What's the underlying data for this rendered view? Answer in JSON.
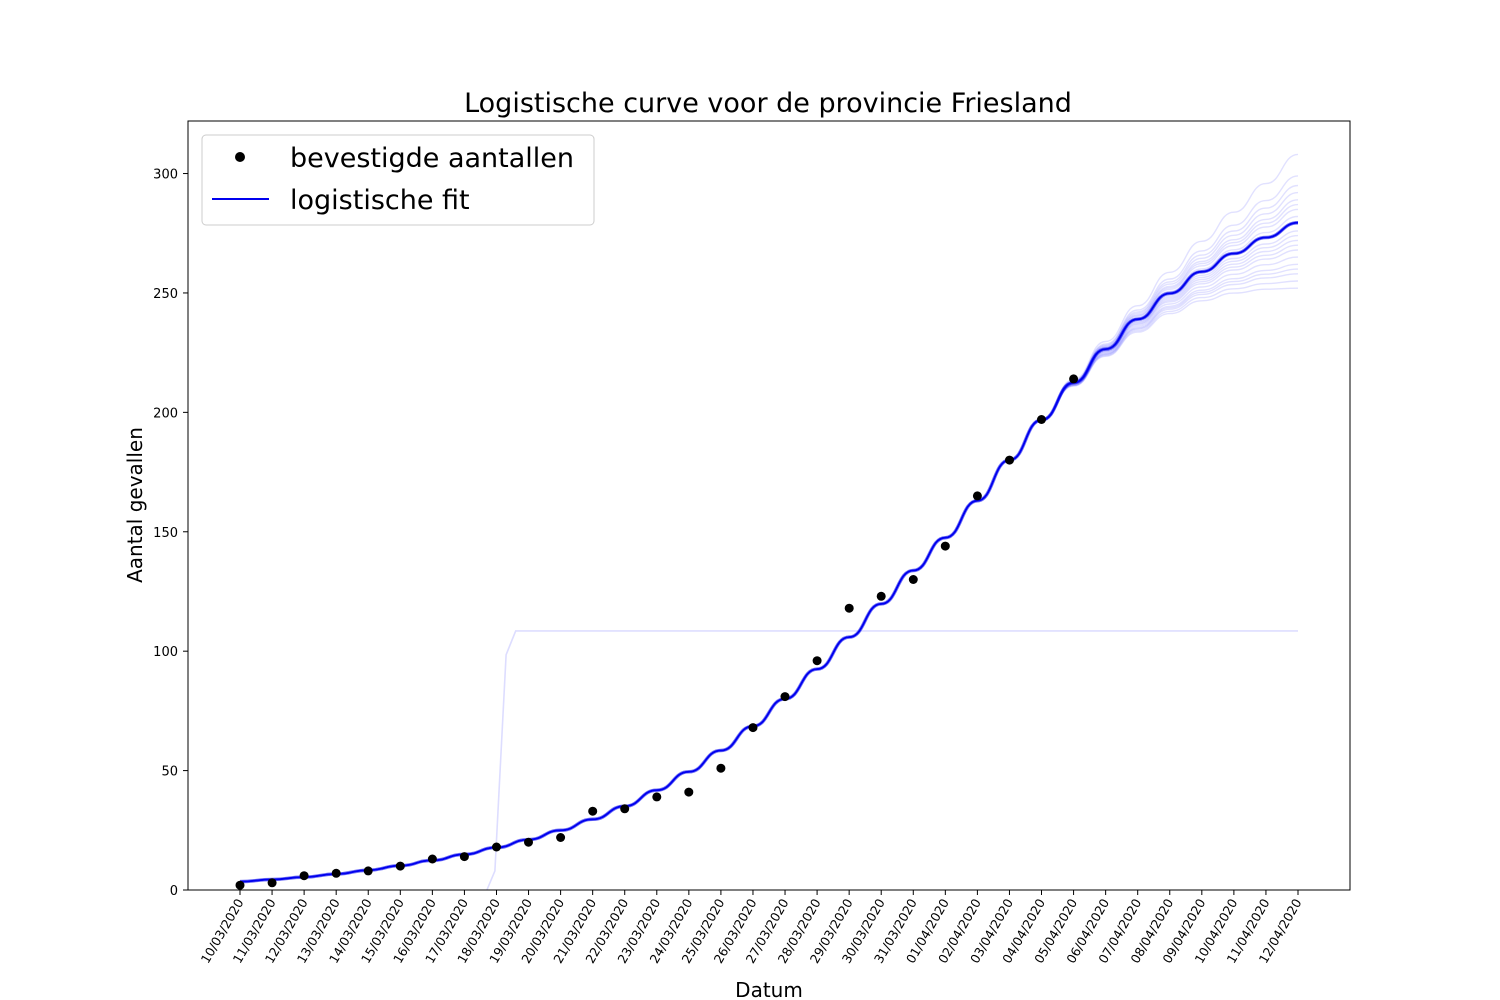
{
  "chart_data": {
    "type": "line",
    "title": "Logistische curve voor de provincie Friesland",
    "xlabel": "Datum",
    "ylabel": "Aantal gevallen",
    "ylim": [
      0,
      322
    ],
    "yticks": [
      0,
      50,
      100,
      150,
      200,
      250,
      300
    ],
    "categories": [
      "10/03/2020",
      "11/03/2020",
      "12/03/2020",
      "13/03/2020",
      "14/03/2020",
      "15/03/2020",
      "16/03/2020",
      "17/03/2020",
      "18/03/2020",
      "19/03/2020",
      "20/03/2020",
      "21/03/2020",
      "22/03/2020",
      "23/03/2020",
      "24/03/2020",
      "25/03/2020",
      "26/03/2020",
      "27/03/2020",
      "28/03/2020",
      "29/03/2020",
      "30/03/2020",
      "31/03/2020",
      "01/04/2020",
      "02/04/2020",
      "03/04/2020",
      "04/04/2020",
      "05/04/2020",
      "06/04/2020",
      "07/04/2020",
      "08/04/2020",
      "09/04/2020",
      "10/04/2020",
      "11/04/2020",
      "12/04/2020"
    ],
    "legend": {
      "position": "top-left",
      "entries": [
        "bevestigde aantallen",
        "logistische fit"
      ]
    },
    "series": [
      {
        "name": "bevestigde aantallen",
        "kind": "scatter",
        "color": "#000000",
        "values": [
          2,
          3,
          6,
          7,
          8,
          10,
          13,
          14,
          18,
          20,
          22,
          33,
          34,
          39,
          41,
          51,
          68,
          81,
          96,
          118,
          123,
          130,
          144,
          165,
          180,
          197,
          214
        ]
      },
      {
        "name": "logistische fit",
        "kind": "line",
        "color": "#0000ee",
        "values": [
          3.5,
          4.4,
          5.4,
          6.7,
          8.3,
          10.2,
          12.4,
          14.9,
          17.8,
          21.1,
          25.0,
          29.6,
          35.1,
          41.8,
          49.5,
          58.4,
          68.6,
          80.0,
          92.5,
          105.9,
          119.8,
          133.8,
          147.5,
          163.0,
          180.0,
          196.8,
          212.4,
          226.5,
          239.0,
          249.8,
          258.9,
          266.5,
          273.2,
          279.4
        ]
      }
    ],
    "bootstrap_endpoints": [
      252,
      255,
      258,
      260,
      262,
      265,
      268,
      270,
      272,
      274,
      276,
      279,
      282,
      285,
      287,
      289,
      292,
      295,
      299,
      308
    ],
    "outlier_fit_plateau": 108.5,
    "colors": {
      "fit": "#0000ee",
      "bootstrap": "#4444ff",
      "points": "#000000"
    }
  }
}
